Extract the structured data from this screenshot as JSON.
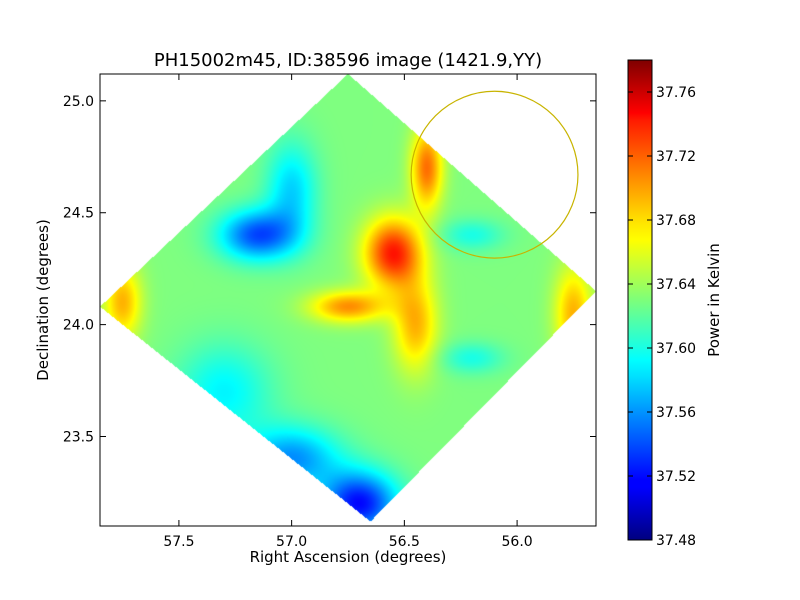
{
  "chart_data": {
    "type": "heatmap",
    "title": "PH15002m45, ID:38596 image (1421.9,YY)",
    "xlabel": "Right Ascension (degrees)",
    "ylabel": "Declination (degrees)",
    "colorbar_label": "Power in Kelvin",
    "xlim": [
      57.85,
      55.65
    ],
    "ylim": [
      23.1,
      25.12
    ],
    "x_ticks": [
      57.5,
      57.0,
      56.5,
      56.0
    ],
    "x_tick_labels": [
      "57.5",
      "57.0",
      "56.5",
      "56.0"
    ],
    "y_ticks": [
      23.5,
      24.0,
      24.5,
      25.0
    ],
    "y_tick_labels": [
      "23.5",
      "24.0",
      "24.5",
      "25.0"
    ],
    "color_range": [
      37.48,
      37.78
    ],
    "colorbar_ticks": [
      37.48,
      37.52,
      37.56,
      37.6,
      37.64,
      37.68,
      37.72,
      37.76
    ],
    "colorbar_tick_labels": [
      "37.48",
      "37.52",
      "37.56",
      "37.60",
      "37.64",
      "37.68",
      "37.72",
      "37.76"
    ],
    "colormap": "jet",
    "background_level": 37.63,
    "field_corners": [
      [
        56.75,
        25.12
      ],
      [
        55.65,
        24.15
      ],
      [
        56.65,
        23.12
      ],
      [
        57.85,
        24.08
      ]
    ],
    "features": [
      {
        "ra": 56.55,
        "dec": 24.32,
        "level": 37.735,
        "sigma_ra": 0.09,
        "sigma_dec": 0.11
      },
      {
        "ra": 56.4,
        "dec": 24.7,
        "level": 37.71,
        "sigma_ra": 0.05,
        "sigma_dec": 0.13
      },
      {
        "ra": 56.75,
        "dec": 24.08,
        "level": 37.7,
        "sigma_ra": 0.12,
        "sigma_dec": 0.05
      },
      {
        "ra": 56.45,
        "dec": 24.0,
        "level": 37.69,
        "sigma_ra": 0.07,
        "sigma_dec": 0.15
      },
      {
        "ra": 57.75,
        "dec": 24.1,
        "level": 37.69,
        "sigma_ra": 0.06,
        "sigma_dec": 0.12
      },
      {
        "ra": 55.75,
        "dec": 24.05,
        "level": 37.69,
        "sigma_ra": 0.06,
        "sigma_dec": 0.15
      },
      {
        "ra": 57.15,
        "dec": 24.4,
        "level": 37.54,
        "sigma_ra": 0.12,
        "sigma_dec": 0.08
      },
      {
        "ra": 57.0,
        "dec": 24.6,
        "level": 37.58,
        "sigma_ra": 0.08,
        "sigma_dec": 0.15
      },
      {
        "ra": 56.7,
        "dec": 23.2,
        "level": 37.52,
        "sigma_ra": 0.12,
        "sigma_dec": 0.1
      },
      {
        "ra": 57.0,
        "dec": 23.4,
        "level": 37.56,
        "sigma_ra": 0.15,
        "sigma_dec": 0.1
      },
      {
        "ra": 56.2,
        "dec": 24.4,
        "level": 37.6,
        "sigma_ra": 0.1,
        "sigma_dec": 0.05
      },
      {
        "ra": 56.2,
        "dec": 23.85,
        "level": 37.6,
        "sigma_ra": 0.1,
        "sigma_dec": 0.05
      },
      {
        "ra": 57.3,
        "dec": 23.7,
        "level": 37.59,
        "sigma_ra": 0.15,
        "sigma_dec": 0.15
      }
    ],
    "circle": {
      "center_ra": 56.1,
      "center_dec": 24.67,
      "radius_deg": 0.37,
      "color": "#c8b400"
    }
  }
}
